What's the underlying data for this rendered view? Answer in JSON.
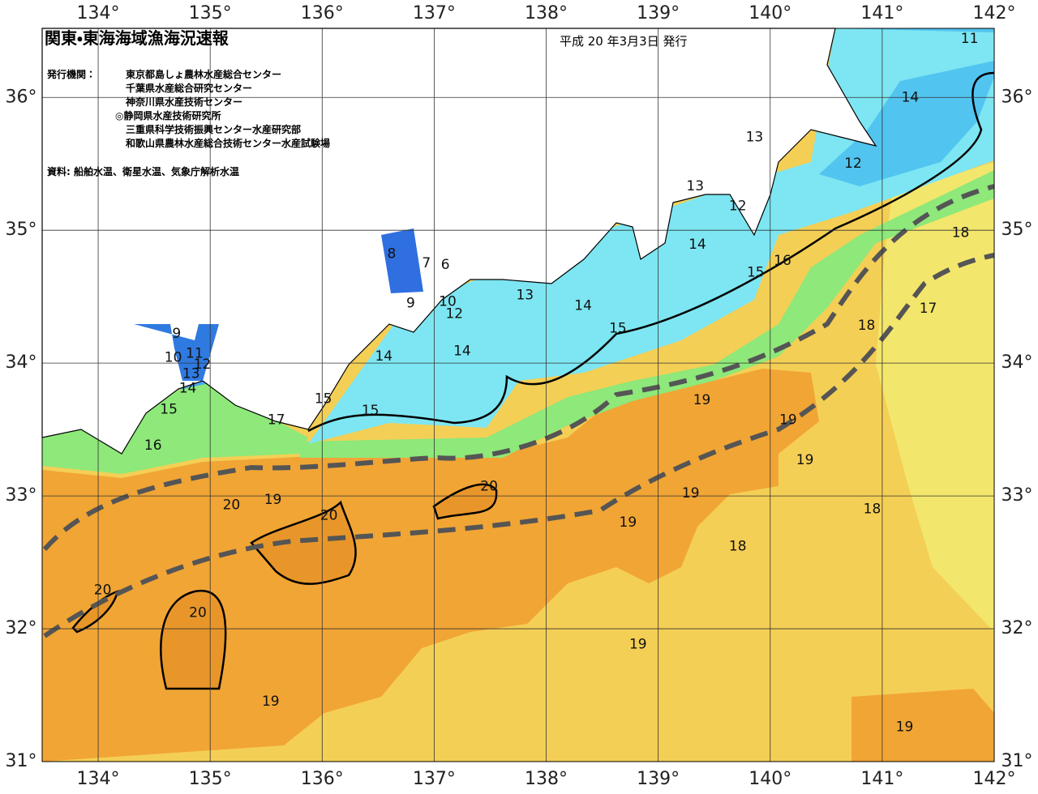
{
  "header": {
    "title": "関東・東海海域漁海況速報",
    "date": "平成 20 年3月3日 発行",
    "issuer_label": "発行機関：",
    "issuers": [
      "東京都島しょ農林水産総合センター",
      "千葉県水産総合研究センター",
      "神奈川県水産技術センター",
      "◎静岡県水産技術研究所",
      "三重県科学技術振興センター水産研究部",
      "和歌山県農林水産総合技術センター水産試験場"
    ],
    "source": "資料: 船舶水温、衛星水温、気象庁解析水温"
  },
  "map": {
    "xlim": [
      133.5,
      142
    ],
    "ylim": [
      31,
      36.52
    ],
    "xticks": [
      {
        "value": 134,
        "label": "134°"
      },
      {
        "value": 135,
        "label": "135°"
      },
      {
        "value": 136,
        "label": "136°"
      },
      {
        "value": 137,
        "label": "137°"
      },
      {
        "value": 138,
        "label": "138°"
      },
      {
        "value": 139,
        "label": "139°"
      },
      {
        "value": 140,
        "label": "140°"
      },
      {
        "value": 141,
        "label": "141°"
      },
      {
        "value": 142,
        "label": "142°"
      }
    ],
    "yticks": [
      {
        "value": 31,
        "label": "31°"
      },
      {
        "value": 32,
        "label": "32°"
      },
      {
        "value": 33,
        "label": "33°"
      },
      {
        "value": 34,
        "label": "34°"
      },
      {
        "value": 35,
        "label": "35°"
      },
      {
        "value": 36,
        "label": "36°"
      }
    ],
    "grid": true,
    "contour_labels": [
      {
        "value": 11,
        "lon": 141.78,
        "lat": 36.44
      },
      {
        "value": 14,
        "lon": 141.25,
        "lat": 36.0
      },
      {
        "value": 13,
        "lon": 139.86,
        "lat": 35.7
      },
      {
        "value": 12,
        "lon": 140.74,
        "lat": 35.5
      },
      {
        "value": 13,
        "lon": 139.33,
        "lat": 35.33
      },
      {
        "value": 12,
        "lon": 139.71,
        "lat": 35.18
      },
      {
        "value": 18,
        "lon": 141.7,
        "lat": 34.98
      },
      {
        "value": 14,
        "lon": 139.35,
        "lat": 34.89
      },
      {
        "value": 16,
        "lon": 140.11,
        "lat": 34.77
      },
      {
        "value": 15,
        "lon": 139.87,
        "lat": 34.68
      },
      {
        "value": 8,
        "lon": 136.62,
        "lat": 34.82
      },
      {
        "value": 7,
        "lon": 136.93,
        "lat": 34.75
      },
      {
        "value": 6,
        "lon": 137.1,
        "lat": 34.74
      },
      {
        "value": 13,
        "lon": 137.81,
        "lat": 34.51
      },
      {
        "value": 9,
        "lon": 136.79,
        "lat": 34.45
      },
      {
        "value": 10,
        "lon": 137.12,
        "lat": 34.46
      },
      {
        "value": 12,
        "lon": 137.18,
        "lat": 34.37
      },
      {
        "value": 14,
        "lon": 138.33,
        "lat": 34.43
      },
      {
        "value": 17,
        "lon": 141.41,
        "lat": 34.41
      },
      {
        "value": 18,
        "lon": 140.86,
        "lat": 34.28
      },
      {
        "value": 15,
        "lon": 138.64,
        "lat": 34.26
      },
      {
        "value": 9,
        "lon": 134.7,
        "lat": 34.22
      },
      {
        "value": 11,
        "lon": 134.86,
        "lat": 34.07
      },
      {
        "value": 12,
        "lon": 134.93,
        "lat": 33.99
      },
      {
        "value": 10,
        "lon": 134.67,
        "lat": 34.04
      },
      {
        "value": 14,
        "lon": 136.55,
        "lat": 34.05
      },
      {
        "value": 14,
        "lon": 137.25,
        "lat": 34.09
      },
      {
        "value": 13,
        "lon": 134.83,
        "lat": 33.92
      },
      {
        "value": 14,
        "lon": 134.8,
        "lat": 33.81
      },
      {
        "value": 15,
        "lon": 136.01,
        "lat": 33.73
      },
      {
        "value": 19,
        "lon": 139.39,
        "lat": 33.72
      },
      {
        "value": 15,
        "lon": 134.63,
        "lat": 33.65
      },
      {
        "value": 15,
        "lon": 136.43,
        "lat": 33.64
      },
      {
        "value": 17,
        "lon": 135.59,
        "lat": 33.57
      },
      {
        "value": 19,
        "lon": 140.16,
        "lat": 33.57
      },
      {
        "value": 16,
        "lon": 134.49,
        "lat": 33.38
      },
      {
        "value": 19,
        "lon": 140.31,
        "lat": 33.27
      },
      {
        "value": 20,
        "lon": 137.49,
        "lat": 33.07
      },
      {
        "value": 19,
        "lon": 139.29,
        "lat": 33.02
      },
      {
        "value": 19,
        "lon": 135.56,
        "lat": 32.97
      },
      {
        "value": 20,
        "lon": 135.19,
        "lat": 32.93
      },
      {
        "value": 20,
        "lon": 136.06,
        "lat": 32.85
      },
      {
        "value": 18,
        "lon": 140.91,
        "lat": 32.9
      },
      {
        "value": 19,
        "lon": 138.73,
        "lat": 32.8
      },
      {
        "value": 18,
        "lon": 139.71,
        "lat": 32.62
      },
      {
        "value": 20,
        "lon": 134.04,
        "lat": 32.29
      },
      {
        "value": 20,
        "lon": 134.89,
        "lat": 32.12
      },
      {
        "value": 19,
        "lon": 138.82,
        "lat": 31.88
      },
      {
        "value": 19,
        "lon": 135.54,
        "lat": 31.45
      },
      {
        "value": 19,
        "lon": 141.2,
        "lat": 31.26
      }
    ]
  }
}
